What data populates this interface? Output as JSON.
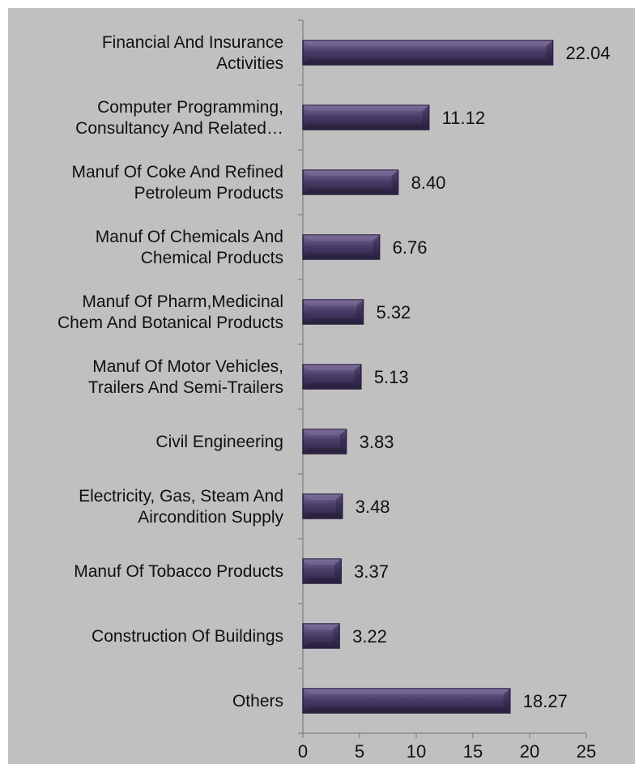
{
  "chart_data": {
    "type": "bar",
    "orientation": "horizontal",
    "categories": [
      [
        "Financial And Insurance",
        "Activities"
      ],
      [
        "Computer Programming,",
        "Consultancy And Related…"
      ],
      [
        "Manuf Of Coke And Refined",
        "Petroleum Products"
      ],
      [
        "Manuf Of Chemicals And",
        "Chemical Products"
      ],
      [
        "Manuf Of Pharm,Medicinal",
        "Chem And Botanical Products"
      ],
      [
        "Manuf Of Motor Vehicles,",
        "Trailers And Semi-Trailers"
      ],
      [
        "Civil Engineering"
      ],
      [
        "Electricity, Gas, Steam And",
        "Aircondition Supply"
      ],
      [
        "Manuf Of Tobacco Products"
      ],
      [
        "Construction Of Buildings"
      ],
      [
        "Others"
      ]
    ],
    "values": [
      22.04,
      11.12,
      8.4,
      6.76,
      5.32,
      5.13,
      3.83,
      3.48,
      3.37,
      3.22,
      18.27
    ],
    "value_labels": [
      "22.04",
      "11.12",
      "8.40",
      "6.76",
      "5.32",
      "5.13",
      "3.83",
      "3.48",
      "3.37",
      "3.22",
      "18.27"
    ],
    "xlim": [
      0,
      25
    ],
    "xticks": [
      0,
      5,
      10,
      15,
      20,
      25
    ],
    "grid": false,
    "legend": "none",
    "colors": {
      "background": "#c0c0c0",
      "bar": "#4a3d68",
      "bar_light": "#7a6b99",
      "bar_dark": "#2a2140",
      "axis": "#7f7f7f"
    }
  }
}
